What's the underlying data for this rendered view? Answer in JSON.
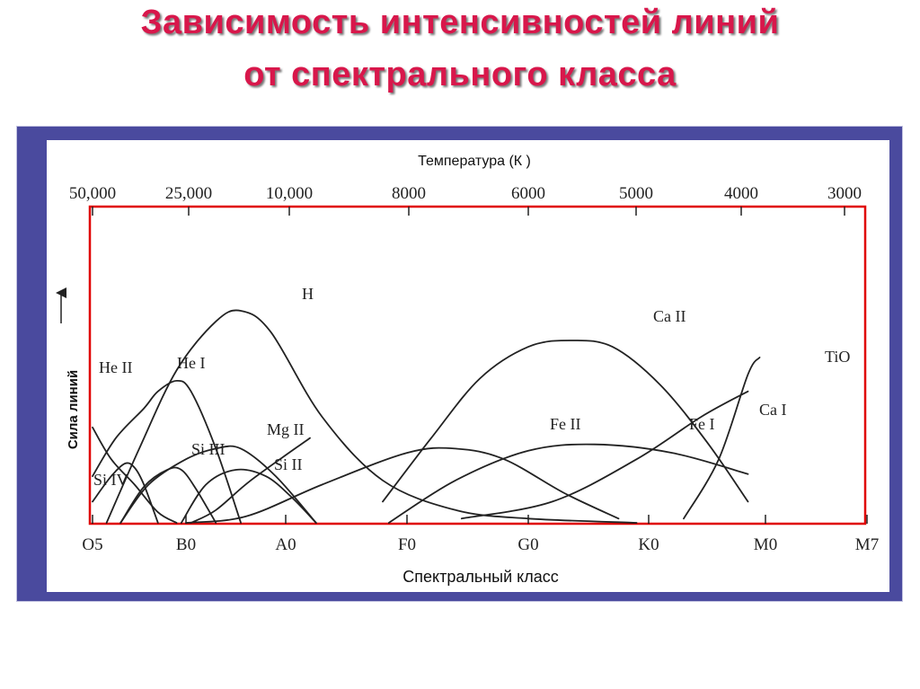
{
  "slide": {
    "title_line1": "Зависимость интенсивностей линий",
    "title_line2": "от спектрального класса"
  },
  "chart_data": {
    "type": "line",
    "title": "",
    "top_axis_label": "Температура (К )",
    "top_ticks": [
      "50,000",
      "25,000",
      "10,000",
      "8000",
      "6000",
      "5000",
      "4000",
      "3000"
    ],
    "xlabel": "Спектральный класс",
    "x_ticks": [
      "O5",
      "B0",
      "A0",
      "F0",
      "G0",
      "K0",
      "M0",
      "M7"
    ],
    "ylabel": "Сила линий",
    "y_values_unit": "relative line strength, 0–1 (axis unlabelled)",
    "series": [
      {
        "name": "He II",
        "x": [
          0.0,
          0.2,
          0.45,
          0.7,
          0.9
        ],
        "y": [
          0.45,
          0.3,
          0.18,
          0.05,
          0.0
        ]
      },
      {
        "name": "He I",
        "x": [
          0.0,
          0.25,
          0.55,
          0.7,
          0.9,
          1.05,
          1.3,
          1.55
        ],
        "y": [
          0.22,
          0.4,
          0.54,
          0.62,
          0.67,
          0.62,
          0.35,
          0.0
        ]
      },
      {
        "name": "H",
        "x": [
          0.15,
          0.5,
          0.9,
          1.3,
          1.55,
          1.85,
          2.3,
          2.8,
          3.4,
          4.0,
          4.9
        ],
        "y": [
          0.0,
          0.35,
          0.72,
          0.95,
          1.0,
          0.9,
          0.5,
          0.2,
          0.06,
          0.02,
          0.0
        ]
      },
      {
        "name": "Ca II",
        "x": [
          2.8,
          3.2,
          3.6,
          4.0,
          4.35,
          4.7,
          5.1,
          5.5,
          5.85
        ],
        "y": [
          0.1,
          0.4,
          0.68,
          0.83,
          0.86,
          0.83,
          0.65,
          0.38,
          0.1
        ]
      },
      {
        "name": "TiO",
        "x": [
          5.3,
          5.6,
          5.85,
          5.95
        ],
        "y": [
          0.02,
          0.3,
          0.7,
          0.78
        ]
      },
      {
        "name": "Ca I",
        "x": [
          3.45,
          4.2,
          4.9,
          5.45,
          5.85
        ],
        "y": [
          0.02,
          0.1,
          0.3,
          0.5,
          0.62
        ]
      },
      {
        "name": "Fe I",
        "x": [
          2.85,
          3.4,
          4.0,
          4.55,
          5.2,
          5.85
        ],
        "y": [
          0.0,
          0.2,
          0.34,
          0.37,
          0.33,
          0.23
        ]
      },
      {
        "name": "Fe II",
        "x": [
          1.0,
          1.6,
          2.3,
          3.0,
          3.4,
          3.8,
          4.3,
          4.75
        ],
        "y": [
          0.0,
          0.03,
          0.18,
          0.33,
          0.35,
          0.3,
          0.14,
          0.02
        ]
      },
      {
        "name": "Mg II",
        "x": [
          0.3,
          0.6,
          1.0,
          1.3,
          1.55,
          1.9,
          2.25
        ],
        "y": [
          0.0,
          0.18,
          0.3,
          0.35,
          0.35,
          0.22,
          0.0
        ]
      },
      {
        "name": "Si IV",
        "x": [
          0.0,
          0.2,
          0.35,
          0.45,
          0.55,
          0.7
        ],
        "y": [
          0.1,
          0.22,
          0.28,
          0.26,
          0.18,
          0.0
        ]
      },
      {
        "name": "Si III",
        "x": [
          0.3,
          0.55,
          0.8,
          0.95,
          1.1,
          1.3
        ],
        "y": [
          0.0,
          0.17,
          0.25,
          0.25,
          0.16,
          0.0
        ]
      },
      {
        "name": "Si II",
        "x": [
          0.95,
          1.2,
          1.5,
          1.8,
          2.05,
          2.25
        ],
        "y": [
          0.0,
          0.18,
          0.25,
          0.22,
          0.12,
          0.0
        ]
      },
      {
        "name": "",
        "x": [
          1.05,
          1.3,
          1.65,
          2.2
        ],
        "y": [
          0.0,
          0.06,
          0.2,
          0.4
        ]
      }
    ],
    "legend": "inline labels at curves",
    "colors": {
      "frame": "#4a4a9e",
      "plot_border": "#e00000",
      "curves": "#222222",
      "title": "#d8174b"
    }
  }
}
